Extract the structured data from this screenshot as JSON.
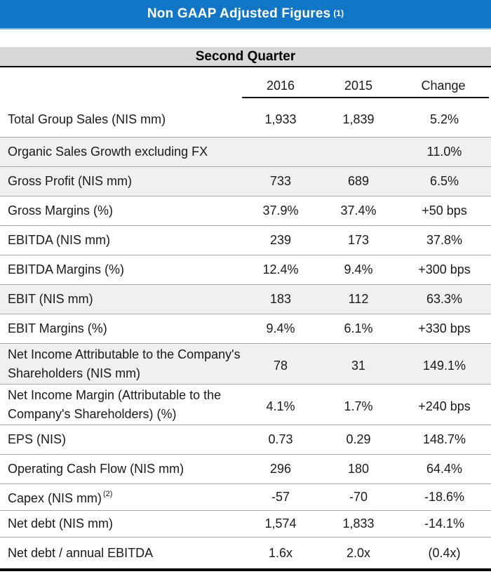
{
  "title": {
    "text": "Non GAAP Adjusted Figures",
    "footnote_marker": "(1)"
  },
  "section": {
    "label": "Second Quarter"
  },
  "columns": {
    "c2016": "2016",
    "c2015": "2015",
    "change": "Change"
  },
  "colors": {
    "title_bar_blue": "#1276c6",
    "title_text": "#ffffff",
    "section_bar_gray": "#d8d8d8",
    "row_stripe_gray": "#f0f0f0",
    "separator_gray": "#a9a9a9",
    "rule_black": "#000000"
  },
  "table": {
    "rows": [
      {
        "label": "Total Group Sales (NIS mm)",
        "y2016": "1,933",
        "y2015": "1,839",
        "change": "5.2%"
      },
      {
        "label": "Organic Sales Growth excluding FX",
        "y2016": "",
        "y2015": "",
        "change": "11.0%"
      },
      {
        "label": "Gross Profit (NIS mm)",
        "y2016": "733",
        "y2015": "689",
        "change": "6.5%"
      },
      {
        "label": "Gross Margins (%)",
        "y2016": "37.9%",
        "y2015": "37.4%",
        "change": "+50 bps"
      },
      {
        "label": "EBITDA (NIS mm)",
        "y2016": "239",
        "y2015": "173",
        "change": "37.8%"
      },
      {
        "label": "EBITDA Margins (%)",
        "y2016": "12.4%",
        "y2015": "9.4%",
        "change": "+300 bps"
      },
      {
        "label": "EBIT (NIS mm)",
        "y2016": "183",
        "y2015": "112",
        "change": "63.3%"
      },
      {
        "label": "EBIT Margins (%)",
        "y2016": "9.4%",
        "y2015": "6.1%",
        "change": "+330 bps"
      },
      {
        "label": "Net Income Attributable to the Company's Shareholders (NIS mm)",
        "y2016": "78",
        "y2015": "31",
        "change": "149.1%"
      },
      {
        "label": "Net Income Margin (Attributable to the Company's Shareholders) (%)",
        "y2016": "4.1%",
        "y2015": "1.7%",
        "change": "+240 bps"
      },
      {
        "label": "EPS (NIS)",
        "y2016": "0.73",
        "y2015": "0.29",
        "change": "148.7%"
      },
      {
        "label": "Operating Cash Flow (NIS mm)",
        "y2016": "296",
        "y2015": "180",
        "change": "64.4%"
      },
      {
        "label": "Capex (NIS mm)",
        "footnote_marker": "(2)",
        "y2016": "-57",
        "y2015": "-70",
        "change": "-18.6%"
      },
      {
        "label": "Net debt (NIS mm)",
        "y2016": "1,574",
        "y2015": "1,833",
        "change": "-14.1%"
      },
      {
        "label": "Net debt / annual EBITDA",
        "y2016": "1.6x",
        "y2015": "2.0x",
        "change": "(0.4x)"
      }
    ]
  }
}
